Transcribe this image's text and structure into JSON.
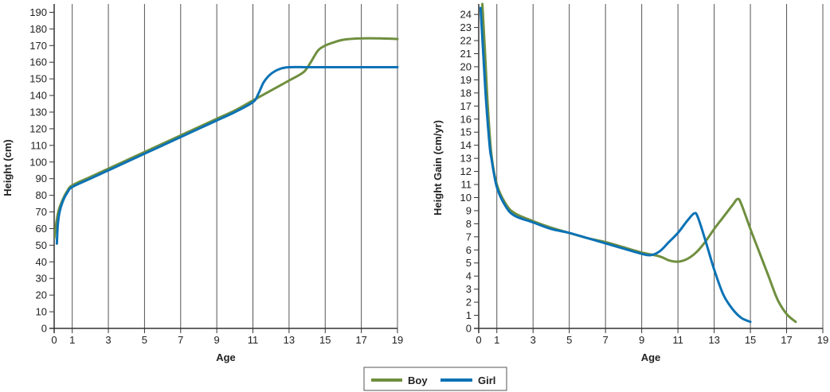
{
  "legend": {
    "items": [
      {
        "label": "Boy",
        "color": "#6f8f3f"
      },
      {
        "label": "Girl",
        "color": "#0b72b5"
      }
    ]
  },
  "chart_data": [
    {
      "type": "line",
      "title": "",
      "xlabel": "Age",
      "ylabel": "Height (cm)",
      "xlim": [
        0,
        19
      ],
      "ylim": [
        0,
        195
      ],
      "xticks": [
        0,
        1,
        3,
        5,
        7,
        9,
        11,
        13,
        15,
        17,
        19
      ],
      "yticks": [
        0,
        10,
        20,
        30,
        40,
        50,
        60,
        70,
        80,
        90,
        100,
        110,
        120,
        130,
        140,
        150,
        160,
        170,
        180,
        190
      ],
      "grid": "vertical",
      "series": [
        {
          "name": "Boy",
          "color": "#6f8f3f",
          "x": [
            0,
            0.1,
            0.25,
            0.5,
            0.75,
            1,
            2,
            3,
            4,
            5,
            6,
            7,
            8,
            9,
            10,
            11,
            12,
            13,
            13.8,
            14.2,
            14.6,
            15,
            15.5,
            16,
            17,
            18,
            19
          ],
          "y": [
            54,
            62,
            71,
            78,
            83,
            86,
            91,
            96,
            101,
            106,
            111,
            116,
            121,
            126,
            131,
            137,
            143,
            149,
            154,
            160,
            167,
            170,
            172,
            173.5,
            174.3,
            174.3,
            174
          ]
        },
        {
          "name": "Girl",
          "color": "#0b72b5",
          "x": [
            0.15,
            0.2,
            0.3,
            0.5,
            0.75,
            1,
            2,
            3,
            4,
            5,
            6,
            7,
            8,
            9,
            10,
            11,
            11.3,
            11.6,
            12,
            12.5,
            13,
            14,
            15,
            17,
            19
          ],
          "y": [
            51,
            62,
            70,
            77,
            82,
            85,
            90,
            95,
            100,
            105,
            110,
            115,
            120,
            125,
            130,
            136,
            141,
            148,
            153,
            156,
            157,
            157,
            157,
            157,
            157
          ]
        }
      ]
    },
    {
      "type": "line",
      "title": "",
      "xlabel": "Age",
      "ylabel": "Height Gain (cm/yr)",
      "xlim": [
        0,
        19
      ],
      "ylim": [
        0,
        24.8
      ],
      "xticks": [
        0,
        1,
        3,
        5,
        7,
        9,
        11,
        13,
        15,
        17,
        19
      ],
      "yticks": [
        0,
        1,
        2,
        3,
        4,
        5,
        6,
        7,
        8,
        9,
        10,
        11,
        12,
        13,
        14,
        15,
        16,
        17,
        18,
        19,
        20,
        21,
        22,
        23,
        24
      ],
      "grid": "vertical",
      "series": [
        {
          "name": "Boy",
          "color": "#6f8f3f",
          "x": [
            0.2,
            0.35,
            0.5,
            0.7,
            1,
            1.5,
            2,
            3,
            4,
            5,
            6,
            7,
            8,
            9,
            10,
            10.5,
            11,
            11.5,
            12,
            12.5,
            13,
            13.5,
            14,
            14.3,
            14.5,
            15,
            15.5,
            16,
            16.5,
            17,
            17.5
          ],
          "y": [
            24.8,
            21,
            17,
            13.3,
            11,
            9.5,
            8.8,
            8.2,
            7.7,
            7.3,
            6.9,
            6.6,
            6.2,
            5.8,
            5.5,
            5.2,
            5.1,
            5.3,
            5.8,
            6.6,
            7.6,
            8.5,
            9.4,
            9.9,
            9.5,
            7.6,
            5.8,
            4.0,
            2.2,
            1.1,
            0.5
          ]
        },
        {
          "name": "Girl",
          "color": "#0b72b5",
          "x": [
            0.1,
            0.25,
            0.4,
            0.6,
            0.7,
            1,
            1.5,
            2,
            3,
            4,
            5,
            6,
            7,
            8,
            9,
            9.5,
            10,
            10.5,
            11,
            11.5,
            11.9,
            12.1,
            12.5,
            13,
            13.5,
            14,
            14.5,
            15
          ],
          "y": [
            24.5,
            21,
            17.5,
            14,
            13,
            10.8,
            9.3,
            8.6,
            8.1,
            7.6,
            7.3,
            6.9,
            6.5,
            6.1,
            5.7,
            5.6,
            5.9,
            6.6,
            7.3,
            8.2,
            8.8,
            8.5,
            6.8,
            4.5,
            2.6,
            1.5,
            0.8,
            0.5
          ]
        }
      ]
    }
  ]
}
